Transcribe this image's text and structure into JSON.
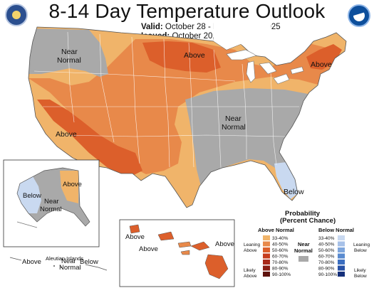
{
  "header": {
    "title": "8-14 Day Temperature Outlook",
    "valid_label": "Valid:",
    "valid_dates": "October 28 - November 3, 2025",
    "issued_label": "Issued:",
    "issued_date": "October 20, 2025"
  },
  "map_labels": {
    "near_normal_nw": "Near",
    "near_normal_nw_2": "Normal",
    "above_north": "Above",
    "above_northeast": "Above",
    "above_southwest": "Above",
    "near_normal_east": "Near",
    "near_normal_east_2": "Normal",
    "below_florida": "Below",
    "alaska_above": "Above",
    "alaska_below": "Below",
    "alaska_near": "Near",
    "alaska_near_2": "Normal",
    "aleutian_above": "Above",
    "aleutian_islands": "Aleutian Islands",
    "aleutian_near": "Near",
    "aleutian_near_2": "Normal",
    "aleutian_below": "Below",
    "hawaii_above_1": "Above",
    "hawaii_above_2": "Above",
    "hawaii_above_3": "Above"
  },
  "legend": {
    "title": "Probability",
    "subtitle": "(Percent Chance)",
    "above_heading": "Above Normal",
    "below_heading": "Below Normal",
    "near_heading": "Near",
    "near_heading_2": "Normal",
    "leaning_above": "Leaning",
    "leaning_above_2": "Above",
    "likely_above": "Likely",
    "likely_above_2": "Above",
    "leaning_below": "Leaning",
    "leaning_below_2": "Below",
    "likely_below": "Likely",
    "likely_below_2": "Below",
    "bins": [
      "33-40%",
      "40-50%",
      "50-60%",
      "60-70%",
      "70-80%",
      "80-90%",
      "90-100%"
    ],
    "above_colors": [
      "#f0b46a",
      "#e8894a",
      "#dc5f2b",
      "#c63d1e",
      "#a8291a",
      "#8a1e15",
      "#5e130e"
    ],
    "below_colors": [
      "#c9d9f0",
      "#a7c1e8",
      "#7fa6dc",
      "#5a8bd0",
      "#3c6fc0",
      "#2852a6",
      "#15307a"
    ],
    "near_color": "#a9a9a9"
  },
  "colors": {
    "near_normal": "#a9a9a9",
    "above_33_40": "#f0b46a",
    "above_40_50": "#e8894a",
    "above_50_60": "#dc5f2b",
    "below_33_40": "#c9d9f0",
    "outline": "#ffffff"
  },
  "logos": [
    "department-of-commerce-seal",
    "noaa-logo"
  ]
}
